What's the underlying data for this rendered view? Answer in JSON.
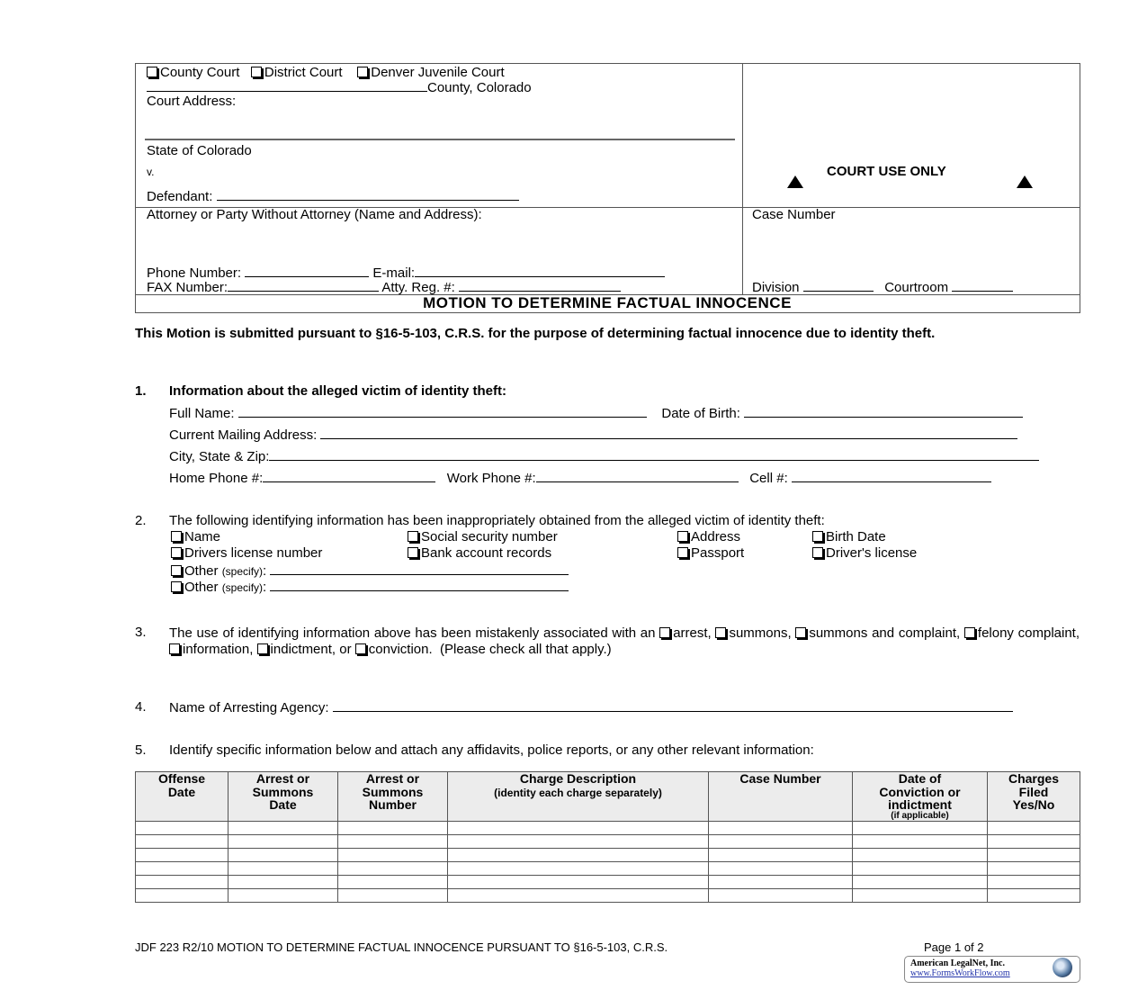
{
  "caption": {
    "courts": [
      "County Court",
      "District Court",
      "Denver Juvenile Court"
    ],
    "county_suffix": "County, Colorado",
    "court_address": "Court Address:",
    "state": "State of Colorado",
    "versus": "v.",
    "defendant": "Defendant:",
    "court_use_only": "COURT USE ONLY",
    "attorney": "Attorney or Party Without Attorney (Name and Address):",
    "phone": "Phone Number:",
    "email": "E-mail:",
    "fax": "FAX Number:",
    "atty_reg": "Atty. Reg. #:",
    "case_number": "Case Number",
    "division": "Division",
    "courtroom": "Courtroom",
    "title": "MOTION TO DETERMINE FACTUAL INNOCENCE"
  },
  "intro": "This Motion is submitted pursuant to §16-5-103, C.R.S. for the purpose of determining factual innocence due to identity theft.",
  "section1": {
    "num": "1.",
    "heading": "Information about the alleged victim of identity theft:",
    "full_name": "Full Name:",
    "dob": "Date of Birth:",
    "mailing": "Current Mailing Address:",
    "city": "City, State & Zip:",
    "home": "Home Phone #:",
    "work": "Work Phone #:",
    "cell": "Cell #:"
  },
  "section2": {
    "num": "2.",
    "text": "The following identifying information has been inappropriately obtained from the alleged victim of identity theft:",
    "options": [
      "Name",
      "Social security number",
      "Address",
      "Birth Date",
      "Drivers license number",
      "Bank account records",
      "Passport",
      "Driver's license"
    ],
    "other": "Other",
    "specify": "(specify)"
  },
  "section3": {
    "num": "3.",
    "pre": "The use of identifying information above has been mistakenly associated with an",
    "options": [
      "arrest,",
      "summons,",
      "summons and complaint,",
      "felony complaint,",
      "information,",
      "indictment, or",
      "conviction."
    ],
    "post": "(Please check all that apply.)"
  },
  "section4": {
    "num": "4.",
    "label": "Name of Arresting Agency:"
  },
  "section5": {
    "num": "5.",
    "text": "Identify specific information below and attach any affidavits, police reports, or any other relevant information:"
  },
  "table": {
    "headers": [
      [
        "Offense",
        "Date"
      ],
      [
        "Arrest or",
        "Summons",
        "Date"
      ],
      [
        "Arrest or",
        "Summons",
        "Number"
      ],
      [
        "Charge Description",
        "(identity each charge separately)"
      ],
      [
        "Case Number"
      ],
      [
        "Date of",
        "Conviction or",
        "indictment",
        "(if applicable)"
      ],
      [
        "Charges",
        "Filed",
        "Yes/No"
      ]
    ]
  },
  "footer": {
    "form": "JDF 223   R2/10   MOTION TO DETERMINE FACTUAL INNOCENCE PURSUANT TO §16-5-103, C.R.S.",
    "page": "Page 1 of 2",
    "logo_name": "American LegalNet, Inc.",
    "logo_url": "www.FormsWorkFlow.com"
  }
}
